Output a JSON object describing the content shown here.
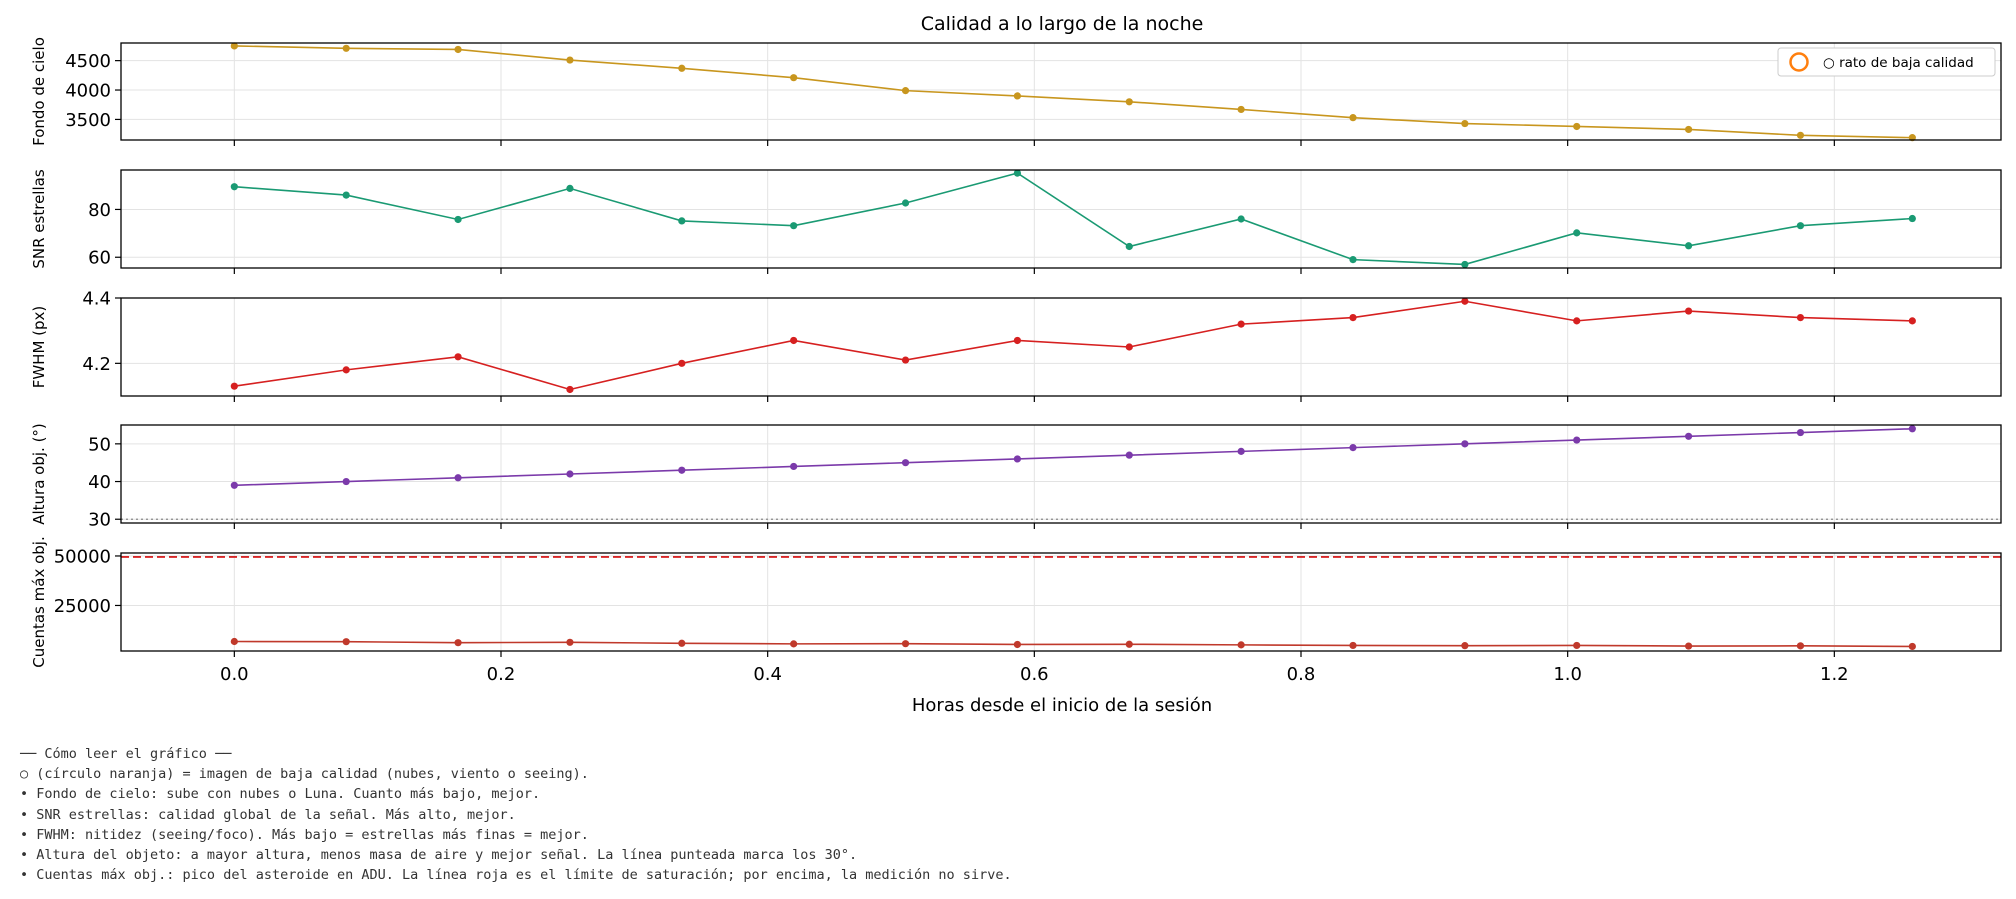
{
  "chart_data": {
    "type": "line",
    "title": "Calidad a lo largo de la noche",
    "xlabel": "Horas desde el inicio de la sesión",
    "xlim": [
      -0.085,
      1.325
    ],
    "xticks": [
      0.0,
      0.2,
      0.4,
      0.6,
      0.8,
      1.0,
      1.2
    ],
    "xtick_labels": [
      "0.0",
      "0.2",
      "0.4",
      "0.6",
      "0.8",
      "1.0",
      "1.2"
    ],
    "x": [
      0.0,
      0.0839,
      0.1678,
      0.2517,
      0.3356,
      0.4195,
      0.5034,
      0.5873,
      0.6712,
      0.7551,
      0.839,
      0.9229,
      1.0068,
      1.0907,
      1.1746,
      1.2585
    ],
    "grid": true,
    "panels": [
      {
        "ylabel": "Fondo de cielo",
        "color": "#c8961e",
        "ylim": [
          3150,
          4800
        ],
        "yticks": [
          3500,
          4000,
          4500
        ],
        "ytick_labels": [
          "3500",
          "4000",
          "4500"
        ],
        "values": [
          4750,
          4710,
          4690,
          4510,
          4370,
          4210,
          3990,
          3900,
          3800,
          3670,
          3530,
          3430,
          3380,
          3330,
          3230,
          3190
        ],
        "legend": {
          "label": "○ rato de baja calidad",
          "marker_color": "#ff7f0e",
          "placement": "upper right"
        }
      },
      {
        "ylabel": "SNR estrellas",
        "color": "#1a9a73",
        "ylim": [
          55.5,
          96.5
        ],
        "yticks": [
          60,
          80
        ],
        "ytick_labels": [
          "60",
          "80"
        ],
        "values": [
          89.5,
          86,
          75.8,
          88.8,
          75.2,
          73.2,
          82.7,
          95.2,
          64.5,
          76,
          59,
          57,
          70.2,
          64.8,
          73.2,
          76.2
        ]
      },
      {
        "ylabel": "FWHM (px)",
        "color": "#d62020",
        "ylim": [
          4.1,
          4.4
        ],
        "yticks": [
          4.2,
          4.4
        ],
        "ytick_labels": [
          "4.2",
          "4.4"
        ],
        "values": [
          4.13,
          4.18,
          4.22,
          4.12,
          4.2,
          4.27,
          4.21,
          4.27,
          4.25,
          4.32,
          4.34,
          4.39,
          4.33,
          4.36,
          4.34,
          4.33
        ]
      },
      {
        "ylabel": "Altura obj. (°)",
        "color": "#7b3aaa",
        "ylim": [
          29,
          55
        ],
        "yticks": [
          30,
          40,
          50
        ],
        "ytick_labels": [
          "30",
          "40",
          "50"
        ],
        "values": [
          39,
          40,
          41,
          42,
          43,
          44,
          45,
          46,
          47,
          48,
          49,
          50,
          51,
          52,
          53,
          54
        ],
        "reference_line": {
          "value": 30,
          "style": "dotted",
          "color": "#888888",
          "meaning": "30°"
        }
      },
      {
        "ylabel": "Cuentas máx obj.",
        "color": "#c0392b",
        "ylim": [
          2000,
          51500
        ],
        "yticks": [
          25000,
          50000
        ],
        "ytick_labels": [
          "25000",
          "50000"
        ],
        "values": [
          6800,
          6700,
          6200,
          6400,
          5900,
          5600,
          5700,
          5300,
          5400,
          5100,
          4800,
          4700,
          4800,
          4500,
          4600,
          4300
        ],
        "reference_line": {
          "value": 49500,
          "style": "dashed",
          "color": "#d62728",
          "meaning": "saturación"
        }
      }
    ]
  },
  "notes": {
    "heading": "── Cómo leer el gráfico ──",
    "lines": [
      "○ (círculo naranja) = imagen de baja calidad (nubes, viento o seeing).",
      "• Fondo de cielo: sube con nubes o Luna. Cuanto más bajo, mejor.",
      "• SNR estrellas: calidad global de la señal. Más alto, mejor.",
      "• FWHM: nitidez (seeing/foco). Más bajo = estrellas más finas = mejor.",
      "• Altura del objeto: a mayor altura, menos masa de aire y mejor señal. La línea punteada marca los 30°.",
      "• Cuentas máx obj.: pico del asteroide en ADU. La línea roja es el límite de saturación; por encima, la medición no sirve."
    ]
  }
}
